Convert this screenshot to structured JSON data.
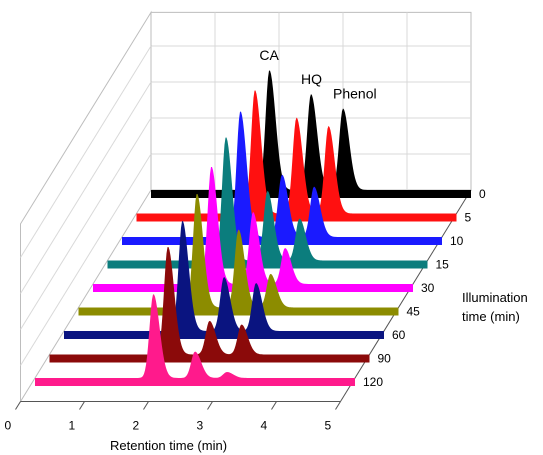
{
  "chart_data": {
    "type": "area",
    "subtype": "3d-waterfall",
    "title": "",
    "xlabel": "Retention time (min)",
    "zlabel_lines": [
      "Illumination",
      "time (min)"
    ],
    "xlim": [
      0,
      5
    ],
    "x_ticks": [
      0,
      1,
      2,
      3,
      4,
      5
    ],
    "grid": true,
    "peak_labels": [
      {
        "text": "CA",
        "retention_time": 1.85
      },
      {
        "text": "HQ",
        "retention_time": 2.5
      },
      {
        "text": "Phenol",
        "retention_time": 3.0
      }
    ],
    "series": [
      {
        "name": "0",
        "color": "#000000",
        "peaks": [
          [
            1.85,
            1.0
          ],
          [
            2.5,
            0.8
          ],
          [
            3.0,
            0.68
          ]
        ]
      },
      {
        "name": "5",
        "color": "#ff1010",
        "peaks": [
          [
            1.85,
            1.03
          ],
          [
            2.5,
            0.8
          ],
          [
            3.0,
            0.73
          ]
        ]
      },
      {
        "name": "10",
        "color": "#1a1aff",
        "peaks": [
          [
            1.85,
            1.05
          ],
          [
            2.5,
            0.52
          ],
          [
            3.0,
            0.42
          ]
        ]
      },
      {
        "name": "15",
        "color": "#0b7d7d",
        "peaks": [
          [
            1.85,
            1.03
          ],
          [
            2.5,
            0.58
          ],
          [
            3.0,
            0.35
          ]
        ]
      },
      {
        "name": "30",
        "color": "#ff00ff",
        "peaks": [
          [
            1.85,
            0.98
          ],
          [
            2.5,
            0.6
          ],
          [
            3.0,
            0.3
          ]
        ]
      },
      {
        "name": "45",
        "color": "#8c8c00",
        "peaks": [
          [
            1.85,
            0.95
          ],
          [
            2.5,
            0.65
          ],
          [
            3.0,
            0.28
          ]
        ]
      },
      {
        "name": "60",
        "color": "#0a1480",
        "peaks": [
          [
            1.85,
            0.92
          ],
          [
            2.5,
            0.45
          ],
          [
            3.0,
            0.4
          ]
        ]
      },
      {
        "name": "90",
        "color": "#8b0a0a",
        "peaks": [
          [
            1.85,
            0.9
          ],
          [
            2.5,
            0.28
          ],
          [
            3.0,
            0.25
          ]
        ]
      },
      {
        "name": "120",
        "color": "#ff1a8c",
        "peaks": [
          [
            1.85,
            0.7
          ],
          [
            2.5,
            0.22
          ],
          [
            3.0,
            0.05
          ]
        ]
      }
    ]
  }
}
